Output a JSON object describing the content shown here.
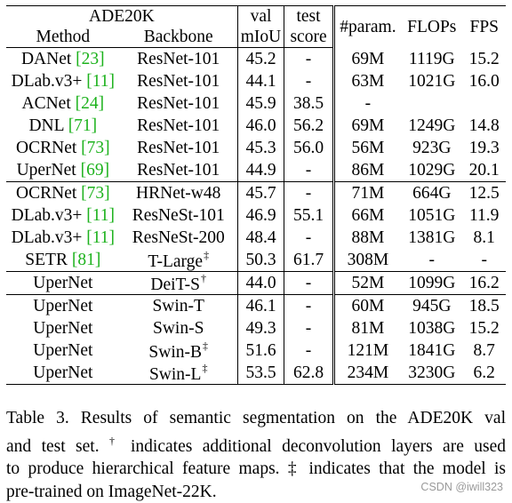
{
  "table": {
    "dataset": "ADE20K",
    "headers": {
      "method": "Method",
      "backbone": "Backbone",
      "val_top": "val",
      "val_bottom": "mIoU",
      "test_top": "test",
      "test_bottom": "score",
      "params": "#param.",
      "flops": "FLOPs",
      "fps": "FPS"
    },
    "groups": [
      {
        "rows": [
          {
            "method": "DANet",
            "cite": "[23]",
            "backbone": "ResNet-101",
            "sup": "",
            "val": "45.2",
            "test": "-",
            "params": "69M",
            "flops": "1119G",
            "fps": "15.2"
          },
          {
            "method": "DLab.v3+",
            "cite": "[11]",
            "backbone": "ResNet-101",
            "sup": "",
            "val": "44.1",
            "test": "-",
            "params": "63M",
            "flops": "1021G",
            "fps": "16.0"
          },
          {
            "method": "ACNet",
            "cite": "[24]",
            "backbone": "ResNet-101",
            "sup": "",
            "val": "45.9",
            "test": "38.5",
            "params": "-",
            "flops": "",
            "fps": ""
          },
          {
            "method": "DNL",
            "cite": "[71]",
            "backbone": "ResNet-101",
            "sup": "",
            "val": "46.0",
            "test": "56.2",
            "params": "69M",
            "flops": "1249G",
            "fps": "14.8"
          },
          {
            "method": "OCRNet",
            "cite": "[73]",
            "backbone": "ResNet-101",
            "sup": "",
            "val": "45.3",
            "test": "56.0",
            "params": "56M",
            "flops": "923G",
            "fps": "19.3"
          },
          {
            "method": "UperNet",
            "cite": "[69]",
            "backbone": "ResNet-101",
            "sup": "",
            "val": "44.9",
            "test": "-",
            "params": "86M",
            "flops": "1029G",
            "fps": "20.1"
          }
        ]
      },
      {
        "rows": [
          {
            "method": "OCRNet",
            "cite": "[73]",
            "backbone": "HRNet-w48",
            "sup": "",
            "val": "45.7",
            "test": "-",
            "params": "71M",
            "flops": "664G",
            "fps": "12.5"
          },
          {
            "method": "DLab.v3+",
            "cite": "[11]",
            "backbone": "ResNeSt-101",
            "sup": "",
            "val": "46.9",
            "test": "55.1",
            "params": "66M",
            "flops": "1051G",
            "fps": "11.9"
          },
          {
            "method": "DLab.v3+",
            "cite": "[11]",
            "backbone": "ResNeSt-200",
            "sup": "",
            "val": "48.4",
            "test": "-",
            "params": "88M",
            "flops": "1381G",
            "fps": "8.1"
          },
          {
            "method": "SETR",
            "cite": "[81]",
            "backbone": "T-Large",
            "sup": "‡",
            "val": "50.3",
            "test": "61.7",
            "params": "308M",
            "flops": "-",
            "fps": "-"
          }
        ]
      },
      {
        "rows": [
          {
            "method": "UperNet",
            "cite": "",
            "backbone": "DeiT-S",
            "sup": "†",
            "val": "44.0",
            "test": "-",
            "params": "52M",
            "flops": "1099G",
            "fps": "16.2"
          }
        ]
      },
      {
        "rows": [
          {
            "method": "UperNet",
            "cite": "",
            "backbone": "Swin-T",
            "sup": "",
            "val": "46.1",
            "test": "-",
            "params": "60M",
            "flops": "945G",
            "fps": "18.5"
          },
          {
            "method": "UperNet",
            "cite": "",
            "backbone": "Swin-S",
            "sup": "",
            "val": "49.3",
            "test": "-",
            "params": "81M",
            "flops": "1038G",
            "fps": "15.2"
          },
          {
            "method": "UperNet",
            "cite": "",
            "backbone": "Swin-B",
            "sup": "‡",
            "val": "51.6",
            "test": "-",
            "params": "121M",
            "flops": "1841G",
            "fps": "8.7"
          },
          {
            "method": "UperNet",
            "cite": "",
            "backbone": "Swin-L",
            "sup": "‡",
            "val": "53.5",
            "test": "62.8",
            "params": "234M",
            "flops": "3230G",
            "fps": "6.2",
            "bold": true
          }
        ]
      }
    ]
  },
  "caption": {
    "line1": "Table 3. Results of semantic segmentation on the ADE20K val",
    "line2a": "and test set.",
    "dagger": "†",
    "line2b": "indicates additional deconvolution layers are used",
    "line3": "to produce hierarchical feature maps. ‡ indicates that the model is",
    "line4": "pre-trained on ImageNet-22K."
  },
  "watermark": "CSDN @iwill323"
}
